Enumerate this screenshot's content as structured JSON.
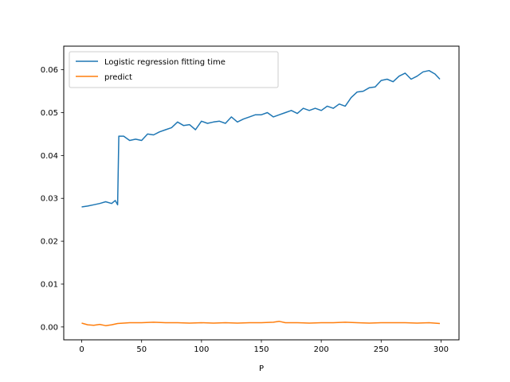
{
  "chart_data": {
    "type": "line",
    "title": "",
    "xlabel": "P",
    "ylabel": "",
    "xlim": [
      -15,
      315
    ],
    "ylim": [
      -0.003,
      0.0655
    ],
    "xticks": [
      0,
      50,
      100,
      150,
      200,
      250,
      300
    ],
    "xtick_labels": [
      "0",
      "50",
      "100",
      "150",
      "200",
      "250",
      "300"
    ],
    "yticks": [
      0.0,
      0.01,
      0.02,
      0.03,
      0.04,
      0.05,
      0.06
    ],
    "ytick_labels": [
      "0.00",
      "0.01",
      "0.02",
      "0.03",
      "0.04",
      "0.05",
      "0.06"
    ],
    "grid": false,
    "legend_position": "top-left",
    "series": [
      {
        "name": "Logistic regression fitting time",
        "color": "#1f77b4",
        "x": [
          0,
          5,
          10,
          15,
          20,
          25,
          28,
          30,
          31,
          35,
          40,
          45,
          50,
          55,
          60,
          65,
          70,
          75,
          80,
          85,
          90,
          95,
          100,
          105,
          110,
          115,
          120,
          125,
          130,
          135,
          140,
          145,
          150,
          155,
          160,
          165,
          170,
          175,
          180,
          185,
          190,
          195,
          200,
          205,
          210,
          215,
          220,
          225,
          230,
          235,
          240,
          245,
          250,
          255,
          260,
          265,
          270,
          275,
          280,
          285,
          290,
          295,
          299
        ],
        "y": [
          0.028,
          0.0282,
          0.0285,
          0.0288,
          0.0292,
          0.0288,
          0.0295,
          0.0285,
          0.0445,
          0.0445,
          0.0435,
          0.0438,
          0.0435,
          0.045,
          0.0448,
          0.0455,
          0.046,
          0.0465,
          0.0478,
          0.047,
          0.0472,
          0.046,
          0.048,
          0.0475,
          0.0478,
          0.048,
          0.0475,
          0.049,
          0.0478,
          0.0485,
          0.049,
          0.0495,
          0.0495,
          0.05,
          0.049,
          0.0495,
          0.05,
          0.0505,
          0.0498,
          0.051,
          0.0505,
          0.051,
          0.0505,
          0.0515,
          0.051,
          0.052,
          0.0515,
          0.0535,
          0.0548,
          0.055,
          0.0558,
          0.056,
          0.0575,
          0.0578,
          0.0572,
          0.0585,
          0.0592,
          0.0578,
          0.0585,
          0.0595,
          0.0598,
          0.059,
          0.0578
        ]
      },
      {
        "name": "predict",
        "color": "#ff7f0e",
        "x": [
          0,
          5,
          10,
          15,
          20,
          25,
          30,
          35,
          40,
          50,
          60,
          70,
          80,
          90,
          100,
          110,
          120,
          130,
          140,
          150,
          160,
          165,
          170,
          180,
          190,
          200,
          210,
          220,
          230,
          240,
          250,
          260,
          270,
          280,
          290,
          299
        ],
        "y": [
          0.0009,
          0.0005,
          0.0004,
          0.0006,
          0.0003,
          0.0005,
          0.0008,
          0.0009,
          0.001,
          0.001,
          0.0011,
          0.001,
          0.001,
          0.0009,
          0.001,
          0.0009,
          0.001,
          0.0009,
          0.001,
          0.001,
          0.0011,
          0.0013,
          0.001,
          0.001,
          0.0009,
          0.001,
          0.001,
          0.0011,
          0.001,
          0.0009,
          0.001,
          0.001,
          0.001,
          0.0009,
          0.001,
          0.0008
        ]
      }
    ]
  }
}
